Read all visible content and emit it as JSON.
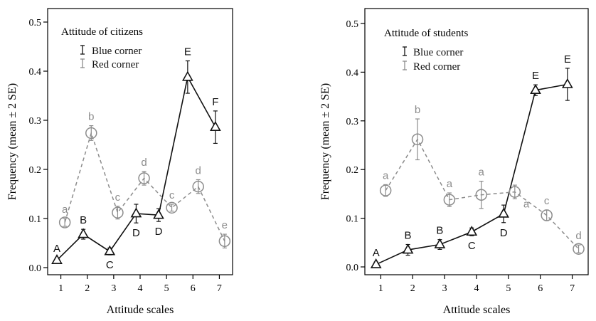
{
  "colors": {
    "blue": "#111111",
    "red": "#8c8c8c",
    "axis": "#000000"
  },
  "chart_data": [
    {
      "type": "line",
      "title": "Attitude of citizens",
      "xlabel": "Attitude scales",
      "ylabel": "Frequency (mean ± 2 SE)",
      "xlim": [
        0.5,
        7.5
      ],
      "ylim": [
        -0.02,
        0.52
      ],
      "xticks": [
        "1",
        "2",
        "3",
        "4",
        "5",
        "6",
        "7"
      ],
      "yticks": [
        "0.0",
        "0.1",
        "0.2",
        "0.3",
        "0.4",
        "0.5"
      ],
      "legend": {
        "placement": "top-left",
        "entries": [
          "Blue corner",
          "Red corner"
        ]
      },
      "series": [
        {
          "name": "Blue corner",
          "marker": "triangle",
          "style": "solid",
          "x": [
            0.85,
            1.85,
            2.85,
            3.85,
            4.7,
            5.8,
            6.85
          ],
          "values": [
            0.015,
            0.068,
            0.033,
            0.11,
            0.107,
            0.388,
            0.286
          ],
          "se2": [
            0.005,
            0.01,
            0.007,
            0.019,
            0.013,
            0.033,
            0.033
          ],
          "labels": [
            "A",
            "B",
            "C",
            "D",
            "D",
            "E",
            "F"
          ],
          "label_pos": [
            "above",
            "above",
            "below",
            "below",
            "below",
            "above",
            "above"
          ]
        },
        {
          "name": "Red corner",
          "marker": "circle",
          "style": "dashed",
          "x": [
            1.15,
            2.15,
            3.15,
            4.15,
            5.2,
            6.2,
            7.2
          ],
          "values": [
            0.092,
            0.274,
            0.112,
            0.182,
            0.122,
            0.165,
            0.054
          ],
          "se2": [
            0.008,
            0.015,
            0.013,
            0.014,
            0.007,
            0.014,
            0.014
          ],
          "labels": [
            "a",
            "b",
            "c",
            "d",
            "c",
            "d",
            "e"
          ],
          "label_pos": [
            "above",
            "above",
            "above",
            "above",
            "above",
            "above",
            "above"
          ]
        }
      ]
    },
    {
      "type": "line",
      "title": "Attitude of students",
      "xlabel": "Attitude scales",
      "ylabel": "Frequency (mean ± 2 SE)",
      "xlim": [
        0.5,
        7.5
      ],
      "ylim": [
        -0.02,
        0.52
      ],
      "xticks": [
        "1",
        "2",
        "3",
        "4",
        "5",
        "6",
        "7"
      ],
      "yticks": [
        "0.0",
        "0.1",
        "0.2",
        "0.3",
        "0.4",
        "0.5"
      ],
      "legend": {
        "placement": "top-left",
        "entries": [
          "Blue corner",
          "Red corner"
        ]
      },
      "series": [
        {
          "name": "Blue corner",
          "marker": "triangle",
          "style": "solid",
          "x": [
            0.85,
            1.85,
            2.85,
            3.85,
            4.85,
            5.85,
            6.85
          ],
          "values": [
            0.005,
            0.035,
            0.046,
            0.072,
            0.109,
            0.363,
            0.375
          ],
          "se2": [
            0.005,
            0.011,
            0.01,
            0.008,
            0.018,
            0.011,
            0.033
          ],
          "labels": [
            "A",
            "B",
            "B",
            "C",
            "D",
            "E",
            "E"
          ],
          "label_pos": [
            "above",
            "above",
            "above",
            "below",
            "below",
            "above",
            "above"
          ]
        },
        {
          "name": "Red corner",
          "marker": "circle",
          "style": "dashed",
          "x": [
            1.15,
            2.15,
            3.15,
            4.15,
            5.2,
            6.2,
            7.2
          ],
          "values": [
            0.157,
            0.262,
            0.138,
            0.148,
            0.154,
            0.106,
            0.037
          ],
          "se2": [
            0.012,
            0.042,
            0.014,
            0.028,
            0.014,
            0.011,
            0.008
          ],
          "labels": [
            "a",
            "b",
            "a",
            "a",
            "a",
            "c",
            "d"
          ],
          "label_pos": [
            "above",
            "above",
            "above",
            "above",
            "below-right",
            "above",
            "above"
          ]
        }
      ]
    }
  ]
}
